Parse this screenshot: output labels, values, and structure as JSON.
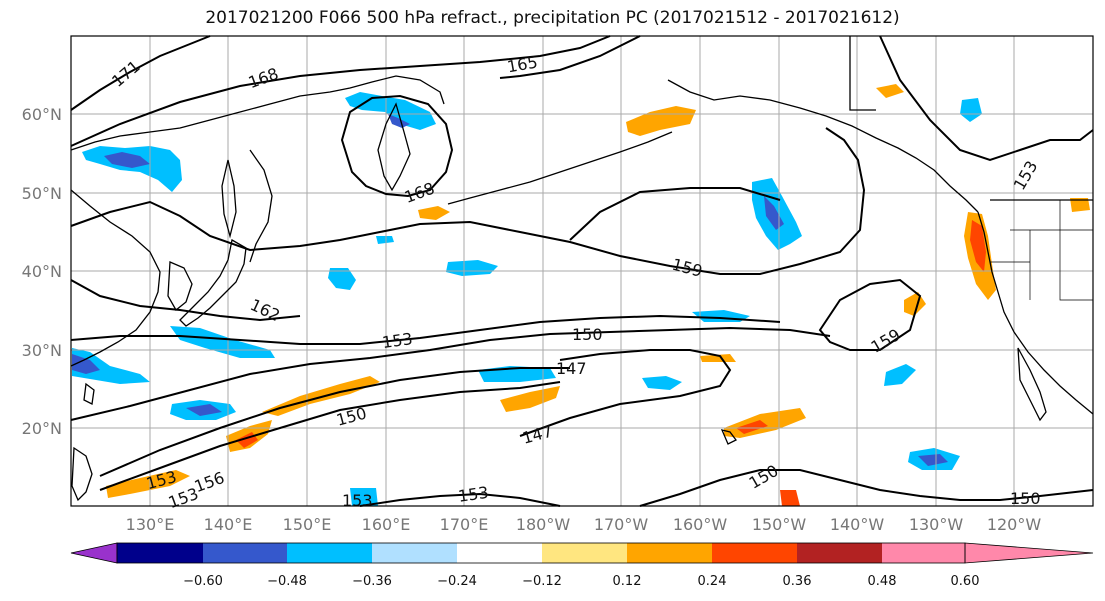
{
  "title": "2017021200 F066 500 hPa refract., precipitation PC (2017021512 - 2017021612)",
  "axes": {
    "lat_labels": [
      "60°N",
      "50°N",
      "40°N",
      "30°N",
      "20°N"
    ],
    "lon_labels": [
      "130°E",
      "140°E",
      "150°E",
      "160°E",
      "170°E",
      "180°W",
      "170°W",
      "160°W",
      "150°W",
      "140°W",
      "130°W",
      "120°W"
    ],
    "lat_values": [
      60,
      50,
      40,
      30,
      20
    ],
    "lon_values": [
      130,
      140,
      150,
      160,
      170,
      180,
      190,
      200,
      210,
      220,
      230,
      240
    ],
    "lon_range": [
      120,
      250
    ],
    "lat_range": [
      10,
      70
    ],
    "grid": true
  },
  "contour_labels": [
    "171",
    "168",
    "165",
    "168",
    "159",
    "162",
    "153",
    "150",
    "147",
    "150",
    "147",
    "159",
    "153",
    "150",
    "153",
    "156",
    "153",
    "153",
    "150",
    "153"
  ],
  "colorbar": {
    "ticks": [
      "−0.60",
      "−0.48",
      "−0.36",
      "−0.24",
      "−0.12",
      "0.12",
      "0.24",
      "0.36",
      "0.48",
      "0.60"
    ],
    "colors": [
      "#9932cc",
      "#00008b",
      "#3558cc",
      "#00bfff",
      "#b0e0ff",
      "#ffffff",
      "#ffe680",
      "#ffa500",
      "#ff4500",
      "#b22222",
      "#ff88aa"
    ],
    "extend": "both"
  },
  "colors": {
    "contour": "#000000",
    "coast": "#000000",
    "grid": "#aaaaaa"
  }
}
